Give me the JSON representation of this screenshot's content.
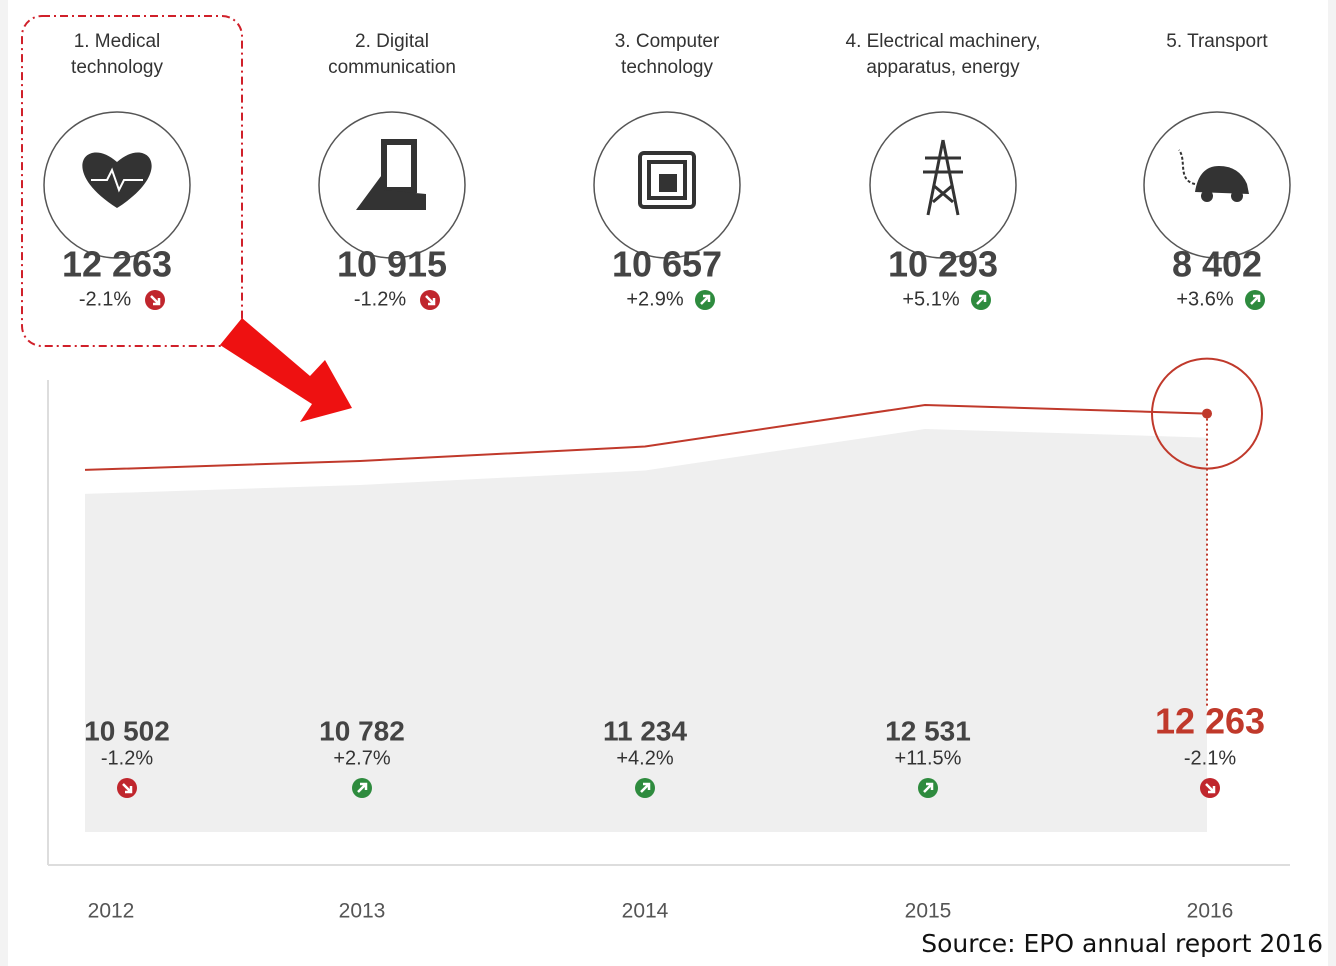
{
  "fields": [
    {
      "label": [
        "1. Medical",
        "technology"
      ],
      "count": "12 263",
      "change": "-2.1%",
      "trend": "down"
    },
    {
      "label": [
        "2. Digital",
        "communication"
      ],
      "count": "10 915",
      "change": "-1.2%",
      "trend": "down"
    },
    {
      "label": [
        "3. Computer",
        "technology"
      ],
      "count": "10 657",
      "change": "+2.9%",
      "trend": "up"
    },
    {
      "label": [
        "4. Electrical machinery,",
        "apparatus, energy"
      ],
      "count": "10 293",
      "change": "+5.1%",
      "trend": "up"
    },
    {
      "label": [
        "5. Transport"
      ],
      "count": "8 402",
      "change": "+3.6%",
      "trend": "up"
    }
  ],
  "chart_data": {
    "type": "line",
    "categories": [
      "2012",
      "2013",
      "2014",
      "2015",
      "2016"
    ],
    "values": [
      10502,
      10782,
      11234,
      12531,
      12263
    ],
    "value_labels": [
      "10 502",
      "10 782",
      "11 234",
      "12 531",
      "12 263"
    ],
    "changes": [
      "-1.2%",
      "+2.7%",
      "+4.2%",
      "+11.5%",
      "-2.1%"
    ],
    "trends": [
      "down",
      "up",
      "up",
      "up",
      "down"
    ],
    "color": "#c0392b",
    "ylim": [
      0,
      13000
    ]
  },
  "source": "Source: EPO annual report 2016"
}
